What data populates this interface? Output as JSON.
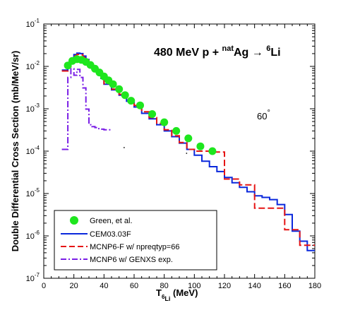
{
  "chart_data": {
    "type": "line",
    "title": {
      "energy": "480 MeV p + ",
      "target_mass": "nat",
      "target": "Ag",
      "arrow": " → ",
      "product_mass": "6",
      "product": "Li"
    },
    "annotation": {
      "text": "60",
      "sup": "°"
    },
    "xlabel": {
      "main": "T",
      "sub": "6",
      "subsub": "Li",
      "unit": " (MeV)"
    },
    "ylabel": "Double Differential Cross Section (mb/MeV/sr)",
    "xlim": [
      0,
      180
    ],
    "ylim_exp": [
      -7,
      -1
    ],
    "yscale": "log",
    "x_ticks": [
      "0",
      "20",
      "40",
      "60",
      "80",
      "100",
      "120",
      "140",
      "160",
      "180"
    ],
    "y_ticks": [
      {
        "base": "10",
        "exp": "-7"
      },
      {
        "base": "10",
        "exp": "-6"
      },
      {
        "base": "10",
        "exp": "-5"
      },
      {
        "base": "10",
        "exp": "-4"
      },
      {
        "base": "10",
        "exp": "-3"
      },
      {
        "base": "10",
        "exp": "-2"
      },
      {
        "base": "10",
        "exp": "-1"
      }
    ],
    "legend_position": "bottom-left",
    "series": [
      {
        "name": "Green, et al.",
        "kind": "markers",
        "color": "#1ee61e",
        "x": [
          16,
          19,
          22,
          25,
          28,
          31,
          34,
          37,
          40,
          43,
          46,
          50,
          54,
          58,
          64,
          72,
          80,
          88,
          96,
          104,
          112
        ],
        "y": [
          0.0105,
          0.0135,
          0.0148,
          0.0143,
          0.0128,
          0.0108,
          0.0088,
          0.0072,
          0.0058,
          0.0047,
          0.0038,
          0.0029,
          0.0021,
          0.00155,
          0.0012,
          0.00075,
          0.00048,
          0.0003,
          0.0002,
          0.00013,
          0.0001
        ]
      },
      {
        "name": "CEM03.03F",
        "kind": "step",
        "color": "#0a28dc",
        "edges": [
          12,
          16,
          18,
          20,
          22,
          24,
          26,
          28,
          30,
          32,
          34,
          36,
          38,
          40,
          45,
          50,
          55,
          60,
          65,
          70,
          75,
          80,
          85,
          90,
          95,
          100,
          105,
          110,
          115,
          120,
          125,
          130,
          135,
          140,
          145,
          150,
          155,
          160,
          165,
          170,
          175,
          180
        ],
        "values": [
          0.0082,
          0.0105,
          0.0155,
          0.019,
          0.0205,
          0.02,
          0.0175,
          0.0145,
          0.0118,
          0.0095,
          0.0078,
          0.0064,
          0.0052,
          0.0038,
          0.0028,
          0.0021,
          0.0015,
          0.0011,
          0.00078,
          0.00058,
          0.00042,
          0.0003,
          0.00022,
          0.000155,
          0.00011,
          8e-05,
          5.8e-05,
          4.3e-05,
          3.3e-05,
          2.4e-05,
          1.8e-05,
          1.4e-05,
          1.1e-05,
          8.8e-06,
          8.1e-06,
          7.2e-06,
          5.5e-06,
          3.2e-06,
          1.3e-06,
          7.5e-07,
          4.5e-07
        ]
      },
      {
        "name": "MCNP6-F w/ npreqtyp=66",
        "kind": "step-dashed",
        "color": "#e61414",
        "edges": [
          12,
          16,
          18,
          20,
          22,
          24,
          26,
          28,
          30,
          32,
          34,
          36,
          38,
          40,
          45,
          50,
          55,
          60,
          65,
          70,
          75,
          80,
          85,
          90,
          95,
          100,
          110,
          120,
          130,
          140,
          150,
          160,
          170,
          180
        ],
        "values": [
          0.0078,
          0.0098,
          0.0145,
          0.0178,
          0.0192,
          0.0188,
          0.0165,
          0.0138,
          0.0113,
          0.0092,
          0.0076,
          0.0063,
          0.0052,
          0.0039,
          0.0029,
          0.0022,
          0.0016,
          0.0012,
          0.00085,
          0.00062,
          0.00045,
          0.00032,
          0.00023,
          0.00016,
          0.00011,
          0.0001,
          9.5e-05,
          2.2e-05,
          1.6e-05,
          4.5e-06,
          4.5e-06,
          1.4e-06,
          6e-07
        ]
      },
      {
        "name": "MCNP6 w/ GENXS exp.",
        "kind": "step-dashdot",
        "color": "#7a1ee6",
        "edges": [
          12,
          16,
          18,
          20,
          22,
          24,
          26,
          28,
          30,
          32,
          34,
          36,
          38,
          40,
          45
        ],
        "values": [
          0.00011,
          0.0055,
          0.0088,
          0.0062,
          0.0085,
          0.0055,
          0.0031,
          0.00098,
          0.00042,
          0.00038,
          0.00036,
          0.00034,
          0.00033,
          0.00032
        ]
      }
    ],
    "stray_marks": [
      {
        "x": 53,
        "y": 0.000125
      },
      {
        "x": 94.5,
        "y": 9.15e-05
      }
    ]
  }
}
